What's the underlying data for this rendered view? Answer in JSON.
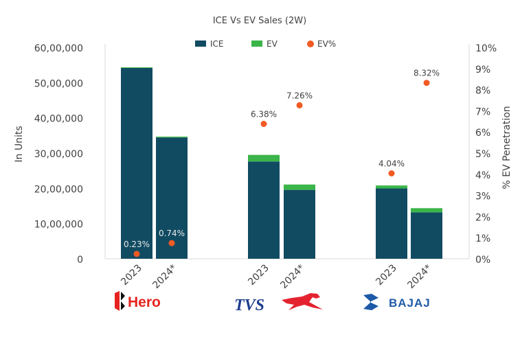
{
  "chart_data": {
    "type": "bar",
    "stacked": true,
    "title": "ICE Vs EV Sales (2W)",
    "ylabel": "In Units",
    "y2label": "% EV Penetration",
    "ylim": [
      0,
      6000000
    ],
    "y2lim": [
      0,
      10
    ],
    "yticks": [
      "0",
      "10,00,000",
      "20,00,000",
      "30,00,000",
      "40,00,000",
      "50,00,000",
      "60,00,000"
    ],
    "y2ticks": [
      "0%",
      "1%",
      "2%",
      "3%",
      "4%",
      "5%",
      "6%",
      "7%",
      "8%",
      "9%",
      "10%"
    ],
    "legend": {
      "position": "top",
      "entries": [
        "ICE",
        "EV",
        "EV%"
      ]
    },
    "grid": false,
    "groups": [
      {
        "brand": "Hero",
        "categories": [
          "2023",
          "2024*"
        ]
      },
      {
        "brand": "TVS",
        "categories": [
          "2023",
          "2024*"
        ]
      },
      {
        "brand": "BAJAJ",
        "categories": [
          "2023",
          "2024*"
        ]
      }
    ],
    "series": [
      {
        "name": "ICE",
        "type": "bar",
        "color": "#114b62",
        "values": [
          5420000,
          3440000,
          2760000,
          1955000,
          1996000,
          1317000
        ]
      },
      {
        "name": "EV",
        "type": "bar",
        "color": "#3bb54a",
        "values": [
          12500,
          25700,
          188000,
          152000,
          84000,
          119000
        ]
      },
      {
        "name": "EV%",
        "type": "scatter",
        "axis": "right",
        "color": "#f15a24",
        "values": [
          0.23,
          0.74,
          6.38,
          7.26,
          4.04,
          8.32
        ],
        "labels": [
          "0.23%",
          "0.74%",
          "6.38%",
          "7.26%",
          "4.04%",
          "8.32%"
        ]
      }
    ]
  }
}
